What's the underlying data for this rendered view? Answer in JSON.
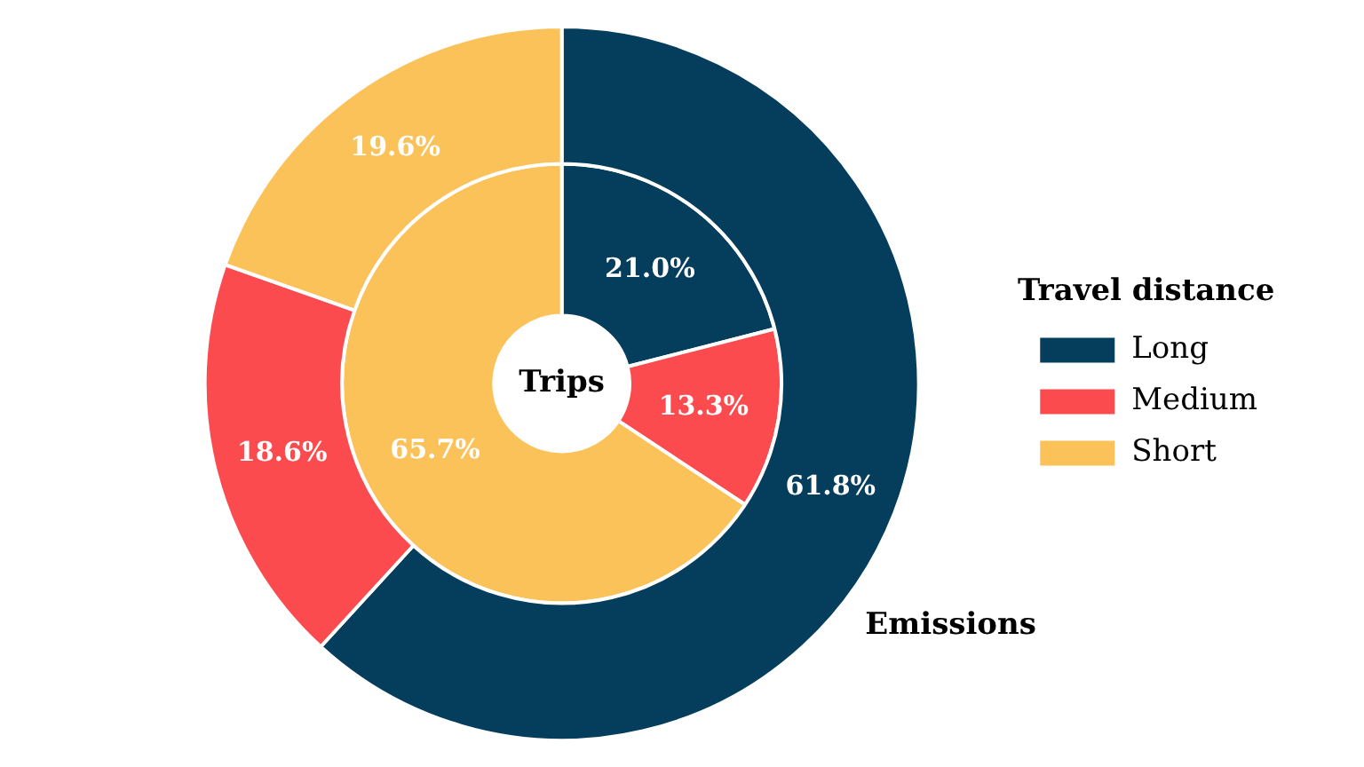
{
  "chart_data": {
    "type": "donut",
    "legend_title": "Travel distance",
    "legend": "right",
    "categories": [
      "Long",
      "Medium",
      "Short"
    ],
    "colors": [
      "#053d5c",
      "#fb4b4e",
      "#fbc25a"
    ],
    "series": [
      {
        "name": "Emissions",
        "values": [
          61.8,
          18.6,
          19.6
        ],
        "value_labels": [
          "61.8%",
          "18.6%",
          "19.6%"
        ]
      },
      {
        "name": "Trips",
        "values": [
          21.0,
          13.3,
          65.7
        ],
        "value_labels": [
          "21.0%",
          "13.3%",
          "65.7%"
        ]
      }
    ]
  }
}
